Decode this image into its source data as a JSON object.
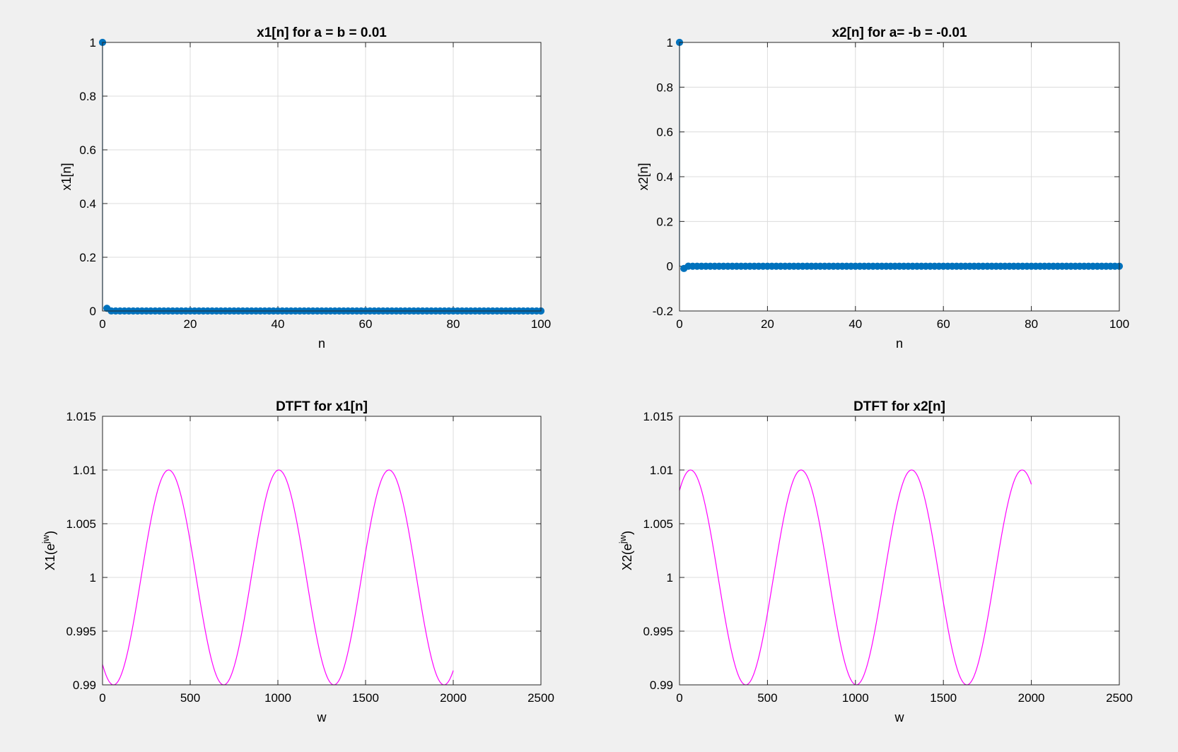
{
  "chart_data": [
    {
      "type": "stem",
      "title": "x1[n] for a = b = 0.01",
      "xlabel": "n",
      "ylabel": "x1[n]",
      "xlim": [
        0,
        100
      ],
      "ylim": [
        0,
        1
      ],
      "xticks": [
        0,
        20,
        40,
        60,
        80,
        100
      ],
      "xtick_labels": [
        "0",
        "20",
        "40",
        "60",
        "80",
        "100"
      ],
      "yticks": [
        0,
        0.2,
        0.4,
        0.6,
        0.8,
        1
      ],
      "ytick_labels": [
        "0",
        "0.2",
        "0.4",
        "0.6",
        "0.8",
        "1"
      ],
      "grid": true,
      "color": "#0072BD",
      "series": [
        {
          "x": [
            0,
            1,
            2,
            3,
            4,
            5,
            6,
            7,
            8,
            9,
            10,
            11,
            12,
            13,
            14,
            15,
            16,
            17,
            18,
            19,
            20,
            21,
            22,
            23,
            24,
            25,
            26,
            27,
            28,
            29,
            30,
            31,
            32,
            33,
            34,
            35,
            36,
            37,
            38,
            39,
            40,
            41,
            42,
            43,
            44,
            45,
            46,
            47,
            48,
            49,
            50,
            51,
            52,
            53,
            54,
            55,
            56,
            57,
            58,
            59,
            60,
            61,
            62,
            63,
            64,
            65,
            66,
            67,
            68,
            69,
            70,
            71,
            72,
            73,
            74,
            75,
            76,
            77,
            78,
            79,
            80,
            81,
            82,
            83,
            84,
            85,
            86,
            87,
            88,
            89,
            90,
            91,
            92,
            93,
            94,
            95,
            96,
            97,
            98,
            99,
            100
          ],
          "y": [
            1,
            0.01,
            0.0001,
            1e-06,
            0,
            0,
            0,
            0,
            0,
            0,
            0,
            0,
            0,
            0,
            0,
            0,
            0,
            0,
            0,
            0,
            0,
            0,
            0,
            0,
            0,
            0,
            0,
            0,
            0,
            0,
            0,
            0,
            0,
            0,
            0,
            0,
            0,
            0,
            0,
            0,
            0,
            0,
            0,
            0,
            0,
            0,
            0,
            0,
            0,
            0,
            0,
            0,
            0,
            0,
            0,
            0,
            0,
            0,
            0,
            0,
            0,
            0,
            0,
            0,
            0,
            0,
            0,
            0,
            0,
            0,
            0,
            0,
            0,
            0,
            0,
            0,
            0,
            0,
            0,
            0,
            0,
            0,
            0,
            0,
            0,
            0,
            0,
            0,
            0,
            0,
            0,
            0,
            0,
            0,
            0,
            0,
            0,
            0,
            0,
            0,
            0
          ]
        }
      ]
    },
    {
      "type": "stem",
      "title": "x2[n] for a= -b = -0.01",
      "xlabel": "n",
      "ylabel": "x2[n]",
      "xlim": [
        0,
        100
      ],
      "ylim": [
        -0.2,
        1
      ],
      "xticks": [
        0,
        20,
        40,
        60,
        80,
        100
      ],
      "xtick_labels": [
        "0",
        "20",
        "40",
        "60",
        "80",
        "100"
      ],
      "yticks": [
        -0.2,
        0,
        0.2,
        0.4,
        0.6,
        0.8,
        1
      ],
      "ytick_labels": [
        "-0.2",
        "0",
        "0.2",
        "0.4",
        "0.6",
        "0.8",
        "1"
      ],
      "grid": true,
      "color": "#0072BD",
      "series": [
        {
          "x": [
            0,
            1,
            2,
            3,
            4,
            5,
            6,
            7,
            8,
            9,
            10,
            11,
            12,
            13,
            14,
            15,
            16,
            17,
            18,
            19,
            20,
            21,
            22,
            23,
            24,
            25,
            26,
            27,
            28,
            29,
            30,
            31,
            32,
            33,
            34,
            35,
            36,
            37,
            38,
            39,
            40,
            41,
            42,
            43,
            44,
            45,
            46,
            47,
            48,
            49,
            50,
            51,
            52,
            53,
            54,
            55,
            56,
            57,
            58,
            59,
            60,
            61,
            62,
            63,
            64,
            65,
            66,
            67,
            68,
            69,
            70,
            71,
            72,
            73,
            74,
            75,
            76,
            77,
            78,
            79,
            80,
            81,
            82,
            83,
            84,
            85,
            86,
            87,
            88,
            89,
            90,
            91,
            92,
            93,
            94,
            95,
            96,
            97,
            98,
            99,
            100
          ],
          "y": [
            1,
            -0.01,
            0.0001,
            -1e-06,
            0,
            0,
            0,
            0,
            0,
            0,
            0,
            0,
            0,
            0,
            0,
            0,
            0,
            0,
            0,
            0,
            0,
            0,
            0,
            0,
            0,
            0,
            0,
            0,
            0,
            0,
            0,
            0,
            0,
            0,
            0,
            0,
            0,
            0,
            0,
            0,
            0,
            0,
            0,
            0,
            0,
            0,
            0,
            0,
            0,
            0,
            0,
            0,
            0,
            0,
            0,
            0,
            0,
            0,
            0,
            0,
            0,
            0,
            0,
            0,
            0,
            0,
            0,
            0,
            0,
            0,
            0,
            0,
            0,
            0,
            0,
            0,
            0,
            0,
            0,
            0,
            0,
            0,
            0,
            0,
            0,
            0,
            0,
            0,
            0,
            0,
            0,
            0,
            0,
            0,
            0,
            0,
            0,
            0,
            0,
            0,
            0
          ]
        }
      ]
    },
    {
      "type": "line",
      "title": "DTFT for x1[n]",
      "xlabel": "w",
      "ylabel": "X1(e^{jw})",
      "ylabel_base": "X1(e",
      "ylabel_sup": "jw",
      "ylabel_close": ")",
      "xlim": [
        0,
        2500
      ],
      "ylim": [
        0.99,
        1.015
      ],
      "xticks": [
        0,
        500,
        1000,
        1500,
        2000,
        2500
      ],
      "xtick_labels": [
        "0",
        "500",
        "1000",
        "1500",
        "2000",
        "2500"
      ],
      "yticks": [
        0.99,
        0.995,
        1,
        1.005,
        1.01,
        1.015
      ],
      "ytick_labels": [
        "0.99",
        "0.995",
        "1",
        "1.005",
        "1.01",
        "1.015"
      ],
      "grid": true,
      "color": "#FF00FF",
      "curve": {
        "w_start": 0,
        "w_end": 2000,
        "center": 1.0,
        "amplitude": 0.01,
        "period_w": 628.3,
        "phase_offset_w": 62.8,
        "sign": -1
      }
    },
    {
      "type": "line",
      "title": "DTFT for x2[n]",
      "xlabel": "w",
      "ylabel": "X2(e^{jw})",
      "ylabel_base": "X2(e",
      "ylabel_sup": "jw",
      "ylabel_close": ")",
      "xlim": [
        0,
        2500
      ],
      "ylim": [
        0.99,
        1.015
      ],
      "xticks": [
        0,
        500,
        1000,
        1500,
        2000,
        2500
      ],
      "xtick_labels": [
        "0",
        "500",
        "1000",
        "1500",
        "2000",
        "2500"
      ],
      "yticks": [
        0.99,
        0.995,
        1,
        1.005,
        1.01,
        1.015
      ],
      "ytick_labels": [
        "0.99",
        "0.995",
        "1",
        "1.005",
        "1.01",
        "1.015"
      ],
      "grid": true,
      "color": "#FF00FF",
      "curve": {
        "w_start": 0,
        "w_end": 2000,
        "center": 1.0,
        "amplitude": 0.01,
        "period_w": 628.3,
        "phase_offset_w": 62.8,
        "sign": 1
      }
    }
  ]
}
